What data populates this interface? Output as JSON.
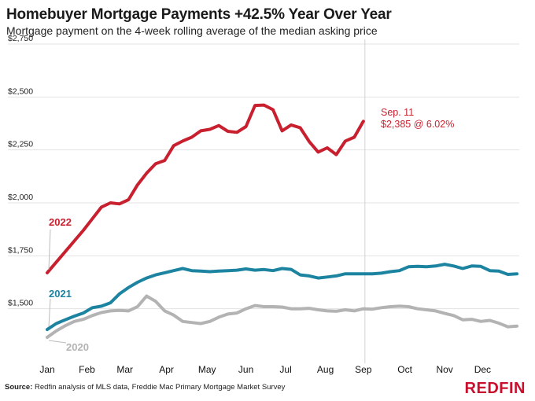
{
  "header": {
    "title": "Homebuyer Mortgage Payments +42.5% Year Over Year",
    "subtitle": "Mortgage payment on the 4-week rolling average of the median asking price"
  },
  "footer": {
    "source_label": "Source:",
    "source_text": " Redfin analysis of MLS data, Freddie Mac Primary Mortgage Market Survey",
    "logo": "REDFIN"
  },
  "colors": {
    "2022": "#c8202f",
    "2021": "#1c84a0",
    "2020": "#b3b3b3",
    "brand": "#c8102e"
  },
  "chart_data": {
    "type": "line",
    "xlabel": "",
    "ylabel": "",
    "ylim": [
      1250,
      2750
    ],
    "xlim": [
      1,
      53
    ],
    "grid": true,
    "x_ticks": [
      {
        "label": "Jan",
        "week": 1
      },
      {
        "label": "Feb",
        "week": 5.4
      },
      {
        "label": "Mar",
        "week": 9.6
      },
      {
        "label": "Apr",
        "week": 14.2
      },
      {
        "label": "May",
        "week": 18.7
      },
      {
        "label": "Jun",
        "week": 23
      },
      {
        "label": "Jul",
        "week": 27.4
      },
      {
        "label": "Aug",
        "week": 31.8
      },
      {
        "label": "Sep",
        "week": 36
      },
      {
        "label": "Oct",
        "week": 40.6
      },
      {
        "label": "Nov",
        "week": 45
      },
      {
        "label": "Dec",
        "week": 49.2
      }
    ],
    "y_ticks": [
      {
        "label": "$1,500",
        "value": 1500
      },
      {
        "label": "$1,750",
        "value": 1750
      },
      {
        "label": "$2,000",
        "value": 2000
      },
      {
        "label": "$2,250",
        "value": 2250
      },
      {
        "label": "$2,500",
        "value": 2500
      },
      {
        "label": "$2,750",
        "value": 2750
      }
    ],
    "series": [
      {
        "name": "2020",
        "color_key": "2020",
        "x": [
          1,
          2,
          3,
          4,
          5,
          6,
          7,
          8,
          9,
          10,
          11,
          12,
          13,
          14,
          15,
          16,
          17,
          18,
          19,
          20,
          21,
          22,
          23,
          24,
          25,
          26,
          27,
          28,
          29,
          30,
          31,
          32,
          33,
          34,
          35,
          36,
          37,
          38,
          39,
          40,
          41,
          42,
          43,
          44,
          45,
          46,
          47,
          48,
          49,
          50,
          51,
          52,
          53
        ],
        "values": [
          1365,
          1395,
          1420,
          1440,
          1450,
          1468,
          1482,
          1490,
          1492,
          1490,
          1510,
          1560,
          1535,
          1490,
          1470,
          1440,
          1435,
          1430,
          1440,
          1460,
          1475,
          1480,
          1500,
          1515,
          1510,
          1510,
          1508,
          1500,
          1500,
          1502,
          1495,
          1490,
          1488,
          1495,
          1490,
          1500,
          1498,
          1505,
          1510,
          1512,
          1510,
          1500,
          1495,
          1490,
          1478,
          1468,
          1448,
          1450,
          1440,
          1445,
          1432,
          1415,
          1418
        ]
      },
      {
        "name": "2021",
        "color_key": "2021",
        "x": [
          1,
          2,
          3,
          4,
          5,
          6,
          7,
          8,
          9,
          10,
          11,
          12,
          13,
          14,
          15,
          16,
          17,
          18,
          19,
          20,
          21,
          22,
          23,
          24,
          25,
          26,
          27,
          28,
          29,
          30,
          31,
          32,
          33,
          34,
          35,
          36,
          37,
          38,
          39,
          40,
          41,
          42,
          43,
          44,
          45,
          46,
          47,
          48,
          49,
          50,
          51,
          52,
          53
        ],
        "values": [
          1402,
          1430,
          1448,
          1465,
          1480,
          1505,
          1512,
          1528,
          1570,
          1600,
          1625,
          1645,
          1660,
          1670,
          1680,
          1690,
          1680,
          1678,
          1675,
          1678,
          1680,
          1682,
          1688,
          1682,
          1685,
          1680,
          1690,
          1686,
          1660,
          1655,
          1645,
          1650,
          1655,
          1665,
          1665,
          1665,
          1665,
          1668,
          1675,
          1680,
          1698,
          1700,
          1698,
          1702,
          1710,
          1702,
          1690,
          1702,
          1700,
          1680,
          1678,
          1662,
          1665
        ]
      },
      {
        "name": "2022",
        "color_key": "2022",
        "x": [
          1,
          2,
          3,
          4,
          5,
          6,
          7,
          8,
          9,
          10,
          11,
          12,
          13,
          14,
          15,
          16,
          17,
          18,
          19,
          20,
          21,
          22,
          23,
          24,
          25,
          26,
          27,
          28,
          29,
          30,
          31,
          32,
          33,
          34,
          35,
          36
        ],
        "values": [
          1670,
          1720,
          1770,
          1820,
          1870,
          1925,
          1980,
          2000,
          1995,
          2015,
          2085,
          2140,
          2185,
          2200,
          2270,
          2292,
          2310,
          2340,
          2347,
          2365,
          2338,
          2333,
          2360,
          2460,
          2462,
          2440,
          2340,
          2368,
          2355,
          2290,
          2240,
          2260,
          2228,
          2292,
          2310,
          2385
        ]
      }
    ],
    "annotations": [
      {
        "text": "2022",
        "series": "2022"
      },
      {
        "text": "2021",
        "series": "2021"
      },
      {
        "text": "2020",
        "series": "2020"
      },
      {
        "text": "Sep. 11",
        "series": "2022"
      },
      {
        "text": "$2,385 @ 6.02%",
        "series": "2022"
      }
    ],
    "marker_week": 36
  }
}
